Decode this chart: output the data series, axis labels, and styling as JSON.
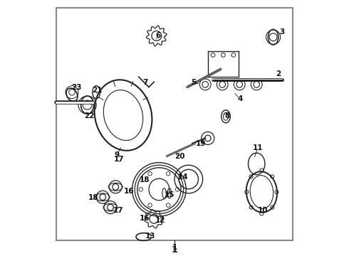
{
  "background_color": "#ffffff",
  "border_color": "#888888",
  "border_linewidth": 1.5,
  "diagram_color": "#222222",
  "label_color": "#111111",
  "main_label": "1",
  "fig_width": 4.9,
  "fig_height": 3.6,
  "dpi": 100
}
